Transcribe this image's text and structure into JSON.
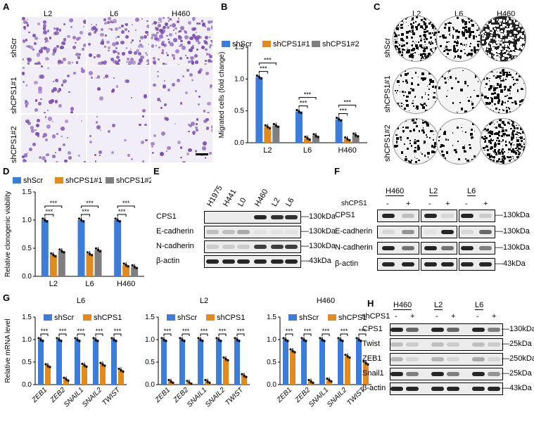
{
  "panels": {
    "A": "A",
    "B": "B",
    "C": "C",
    "D": "D",
    "E": "E",
    "F": "F",
    "G": "G",
    "H": "H"
  },
  "colors": {
    "shScr": "#3b7dd8",
    "shCPS1": "#e08a1f",
    "shCPS1_2": "#7f7f7f",
    "micro": "#7a4fb5"
  },
  "panelA": {
    "cols": [
      "L2",
      "L6",
      "H460"
    ],
    "rows": [
      "shScr",
      "shCPS1#1",
      "shCPS1#2"
    ]
  },
  "panelC": {
    "cols": [
      "L2",
      "L6",
      "H460"
    ],
    "rows": [
      "shScr",
      "shCPS1#1",
      "shCPS1#2"
    ]
  },
  "legend3": [
    "shScr",
    "shCPS1#1",
    "shCPS1#2"
  ],
  "legend2": [
    "shScr",
    "shCPS1"
  ],
  "sig": "***",
  "chart_data": [
    {
      "id": "B",
      "type": "bar",
      "ylabel": "Migrated cells (fold change)",
      "categories": [
        "L2",
        "L6",
        "H460"
      ],
      "series": [
        {
          "name": "shScr",
          "values": [
            1.03,
            0.49,
            0.37
          ]
        },
        {
          "name": "shCPS1#1",
          "values": [
            0.25,
            0.07,
            0.06
          ]
        },
        {
          "name": "shCPS1#2",
          "values": [
            0.27,
            0.11,
            0.12
          ]
        }
      ],
      "ylim": [
        0,
        1.5
      ],
      "yticks": [
        "0.0",
        "0.5",
        "1.0",
        "1.5"
      ]
    },
    {
      "id": "D",
      "type": "bar",
      "ylabel": "Relative clonogenic viability",
      "categories": [
        "L2",
        "L6",
        "H460"
      ],
      "series": [
        {
          "name": "shScr",
          "values": [
            1.0,
            1.0,
            1.0
          ]
        },
        {
          "name": "shCPS1#1",
          "values": [
            0.38,
            0.4,
            0.2
          ]
        },
        {
          "name": "shCPS1#2",
          "values": [
            0.45,
            0.47,
            0.17
          ]
        }
      ],
      "ylim": [
        0,
        1.5
      ],
      "yticks": [
        "0.0",
        "0.5",
        "1.0",
        "1.5"
      ]
    },
    {
      "id": "G1",
      "type": "bar",
      "title": "L6",
      "ylabel": "Relative mRNA level",
      "categories": [
        "ZEB1",
        "ZEB2",
        "SNAIL1",
        "SNAIL2",
        "TWIST"
      ],
      "series": [
        {
          "name": "shScr",
          "values": [
            1.0,
            1.0,
            1.0,
            1.0,
            1.0
          ]
        },
        {
          "name": "shCPS1",
          "values": [
            0.42,
            0.12,
            0.43,
            0.45,
            0.32
          ]
        }
      ],
      "ylim": [
        0,
        1.5
      ],
      "yticks": [
        "0.0",
        "0.5",
        "1.0",
        "1.5"
      ]
    },
    {
      "id": "G2",
      "type": "bar",
      "title": "L2",
      "categories": [
        "ZEB1",
        "ZEB2",
        "SNAIL1",
        "SNAIL2",
        "TWIST"
      ],
      "series": [
        {
          "name": "shScr",
          "values": [
            1.0,
            1.0,
            1.0,
            1.0,
            1.0
          ]
        },
        {
          "name": "shCPS1",
          "values": [
            0.07,
            0.05,
            0.07,
            0.57,
            0.2
          ]
        }
      ],
      "ylim": [
        0,
        1.5
      ],
      "yticks": [
        "0.0",
        "0.5",
        "1.0",
        "1.5"
      ]
    },
    {
      "id": "G3",
      "type": "bar",
      "title": "H460",
      "categories": [
        "ZEB1",
        "ZEB2",
        "SNAIL1",
        "SNAIL2",
        "TWIST"
      ],
      "series": [
        {
          "name": "shScr",
          "values": [
            1.0,
            1.0,
            1.0,
            1.0,
            1.0
          ]
        },
        {
          "name": "shCPS1",
          "values": [
            0.75,
            0.07,
            0.1,
            0.63,
            0.48
          ]
        }
      ],
      "ylim": [
        0,
        1.5
      ],
      "yticks": [
        "0.0",
        "0.5",
        "1.0",
        "1.5"
      ]
    }
  ],
  "panelE": {
    "lanes": [
      "H1975",
      "H441",
      "L0",
      "H460",
      "L2",
      "L6"
    ],
    "rows": [
      "CPS1",
      "E-cadherin",
      "N-cadherin",
      "β-actin"
    ],
    "kda": [
      "130kDa",
      "130kDa",
      "130kDa",
      "43kDa"
    ]
  },
  "panelF": {
    "groups": [
      "H460",
      "L2",
      "L6"
    ],
    "shlabel": "shCPS1",
    "signs": [
      "-",
      "+",
      "-",
      "+",
      "-",
      "+"
    ],
    "rows": [
      "CPS1",
      "E-cadherin",
      "N-cadherin",
      "β-actin"
    ],
    "kda": [
      "130kDa",
      "130kDa",
      "130kDa",
      "43kDa"
    ]
  },
  "panelH": {
    "groups": [
      "H460",
      "L2",
      "L6"
    ],
    "shlabel": "shCPS1",
    "signs": [
      "-",
      "+",
      "-",
      "+",
      "-",
      "+"
    ],
    "rows": [
      "CPS1",
      "Twist",
      "ZEB1",
      "Snail1",
      "β-actin"
    ],
    "kda": [
      "130kDa",
      "25kDa",
      "250kDa",
      "25kDa",
      "43kDa"
    ]
  }
}
